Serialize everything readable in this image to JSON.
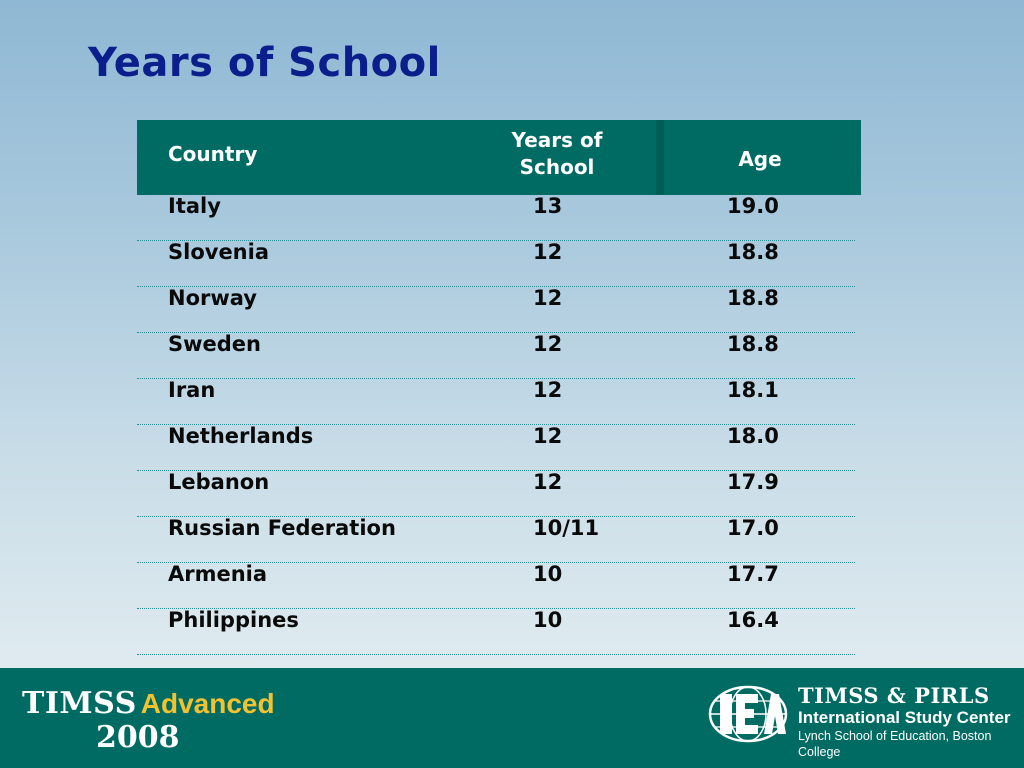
{
  "title": "Years of School",
  "table": {
    "headers": {
      "country": "Country",
      "years_line1": "Years of",
      "years_line2": "School",
      "age": "Age"
    },
    "rows": [
      {
        "country": "Italy",
        "years": "13",
        "age": "19.0"
      },
      {
        "country": "Slovenia",
        "years": "12",
        "age": "18.8"
      },
      {
        "country": "Norway",
        "years": "12",
        "age": "18.8"
      },
      {
        "country": "Sweden",
        "years": "12",
        "age": "18.8"
      },
      {
        "country": "Iran",
        "years": "12",
        "age": "18.1"
      },
      {
        "country": "Netherlands",
        "years": "12",
        "age": "18.0"
      },
      {
        "country": "Lebanon",
        "years": "12",
        "age": "17.9"
      },
      {
        "country": "Russian Federation",
        "years": "10/11",
        "age": "17.0"
      },
      {
        "country": "Armenia",
        "years": "10",
        "age": "17.7"
      },
      {
        "country": "Philippines",
        "years": "10",
        "age": "16.4"
      }
    ]
  },
  "footer": {
    "left_logo": {
      "timss": "TIMSS",
      "advanced": "Advanced",
      "year": "2008"
    },
    "right_logo": {
      "icon": "iea-globe-logo",
      "line1": "TIMSS & PIRLS",
      "line2": "International Study Center",
      "line3": "Lynch School of Education, Boston College"
    }
  },
  "colors": {
    "title": "#0b1f8c",
    "header_bg": "#006b63",
    "footer_bg": "#006b63",
    "accent_gold": "#f2c230"
  }
}
